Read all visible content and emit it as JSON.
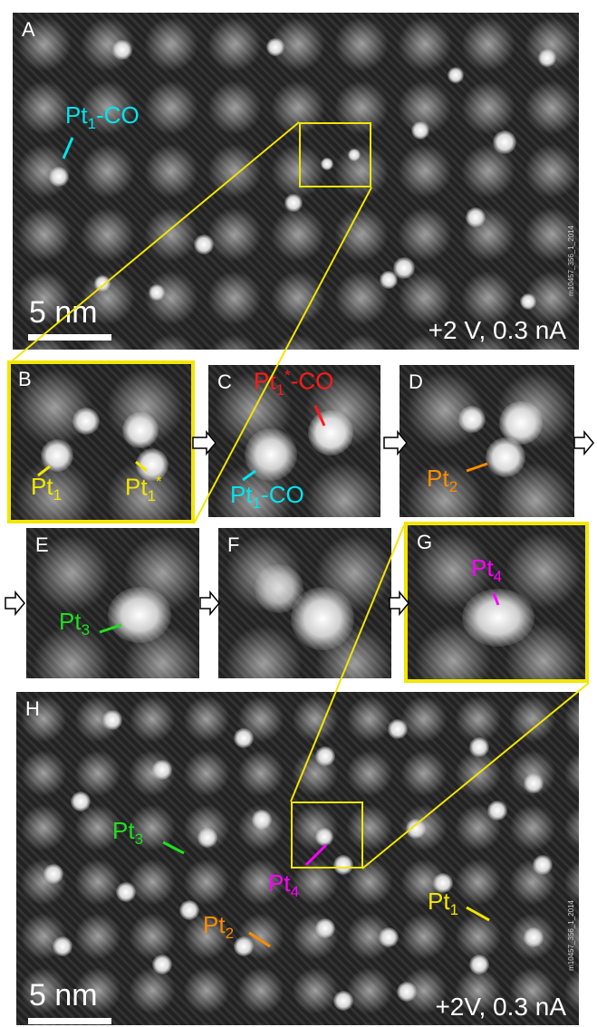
{
  "panels": {
    "A": {
      "letter": "A",
      "condition": "+2 V, 0.3 nA",
      "scale": "5 nm",
      "watermark": "m10457_356_1_2014"
    },
    "B": {
      "letter": "B"
    },
    "C": {
      "letter": "C"
    },
    "D": {
      "letter": "D"
    },
    "E": {
      "letter": "E"
    },
    "F": {
      "letter": "F"
    },
    "G": {
      "letter": "G"
    },
    "H": {
      "letter": "H",
      "condition": "+2V, 0.3 nA",
      "scale": "5 nm",
      "watermark": "m10457_356_1_2014"
    }
  },
  "labels": {
    "A_pt1co": {
      "base": "Pt",
      "sub": "1",
      "suffix": "-CO",
      "color": "#00e5ee"
    },
    "B_pt1": {
      "base": "Pt",
      "sub": "1",
      "color": "#f2e600"
    },
    "B_pt1star": {
      "base": "Pt",
      "sub": "1",
      "sup": "*",
      "color": "#f2e600"
    },
    "C_pt1starco": {
      "base": "Pt",
      "sub": "1",
      "sup": "*",
      "suffix": "-CO",
      "color": "#ff1a1a"
    },
    "C_pt1co": {
      "base": "Pt",
      "sub": "1",
      "suffix": "-CO",
      "color": "#00e5ee"
    },
    "D_pt2": {
      "base": "Pt",
      "sub": "2",
      "color": "#ff8c00"
    },
    "E_pt3": {
      "base": "Pt",
      "sub": "3",
      "color": "#22dd22"
    },
    "G_pt4": {
      "base": "Pt",
      "sub": "4",
      "color": "#ff00ff"
    },
    "H_pt3": {
      "base": "Pt",
      "sub": "3",
      "color": "#22dd22"
    },
    "H_pt4": {
      "base": "Pt",
      "sub": "4",
      "color": "#ff00ff"
    },
    "H_pt2": {
      "base": "Pt",
      "sub": "2",
      "color": "#ff8c00"
    },
    "H_pt1": {
      "base": "Pt",
      "sub": "1",
      "color": "#f2e600"
    }
  },
  "colors": {
    "highlight": "#f2e600",
    "background": "#262626"
  }
}
